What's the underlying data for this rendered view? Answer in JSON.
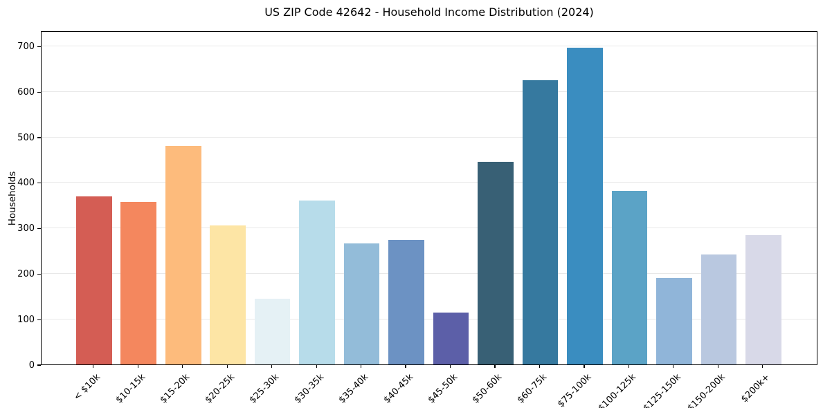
{
  "chart_data": {
    "type": "bar",
    "title": "US ZIP Code 42642 - Household Income Distribution (2024)",
    "xlabel": "",
    "ylabel": "Households",
    "ylim": [
      0,
      733
    ],
    "grid": "horizontal",
    "legend": "none",
    "yticks": [
      0,
      100,
      200,
      300,
      400,
      500,
      600,
      700
    ],
    "categories": [
      "< $10k",
      "$10-15k",
      "$15-20k",
      "$20-25k",
      "$25-30k",
      "$30-35k",
      "$35-40k",
      "$40-45k",
      "$45-50k",
      "$50-60k",
      "$60-75k",
      "$75-100k",
      "$100-125k",
      "$125-150k",
      "$150-200k",
      "$200k+"
    ],
    "values": [
      369,
      358,
      481,
      306,
      144,
      360,
      266,
      273,
      114,
      445,
      625,
      696,
      382,
      190,
      241,
      285
    ],
    "bar_colors": [
      "#d45d54",
      "#f4875e",
      "#fdbb7c",
      "#fde5a5",
      "#e5f1f5",
      "#b7dcea",
      "#93bcd9",
      "#6c92c3",
      "#5c5fa8",
      "#386075",
      "#36799f",
      "#3a8dc0",
      "#5ba3c6",
      "#90b5d9",
      "#b9c8e0",
      "#d8d9e8"
    ],
    "spine_color": "#000000",
    "gridline_color": "#e8e8e8",
    "background_color": "#ffffff"
  }
}
